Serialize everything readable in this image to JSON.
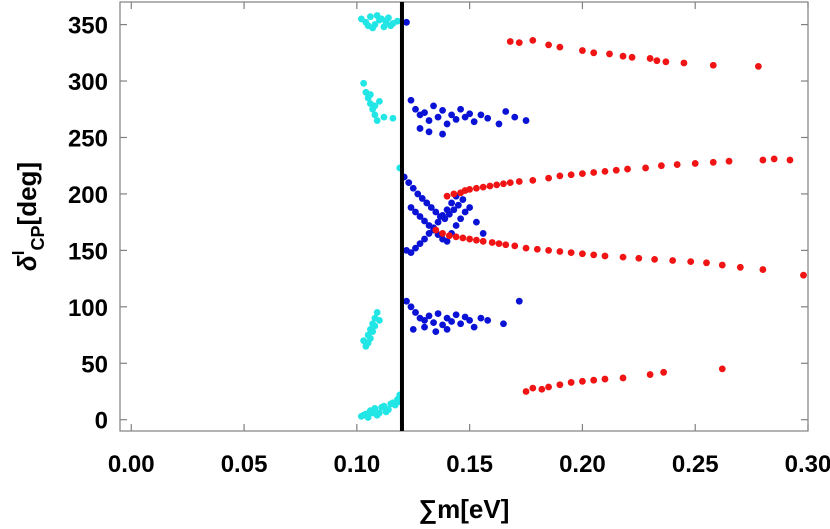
{
  "chart_data": {
    "type": "scatter",
    "title": "",
    "xlabel": "∑m[eV]",
    "ylabel_main": "δ",
    "ylabel_sup": "l",
    "ylabel_sub": "CP",
    "ylabel_unit": "[deg]",
    "xlim": [
      -0.005,
      0.3
    ],
    "ylim": [
      -10,
      370
    ],
    "x_ticks": [
      0.0,
      0.05,
      0.1,
      0.15,
      0.2,
      0.25,
      0.3
    ],
    "x_tick_labels": [
      "0.00",
      "0.05",
      "0.10",
      "0.15",
      "0.20",
      "0.25",
      "0.30"
    ],
    "y_ticks": [
      0,
      50,
      100,
      150,
      200,
      250,
      300,
      350
    ],
    "y_tick_labels": [
      "0",
      "50",
      "100",
      "150",
      "200",
      "250",
      "300",
      "350"
    ],
    "vertical_line": {
      "x": 0.12,
      "color": "#000000"
    },
    "grid": false,
    "series": [
      {
        "color": "#22e6e6",
        "points": [
          [
            0.102,
            355
          ],
          [
            0.104,
            352
          ],
          [
            0.106,
            357
          ],
          [
            0.108,
            350
          ],
          [
            0.11,
            354
          ],
          [
            0.112,
            348
          ],
          [
            0.114,
            356
          ],
          [
            0.116,
            351
          ],
          [
            0.118,
            353
          ],
          [
            0.105,
            349
          ],
          [
            0.109,
            358
          ],
          [
            0.113,
            352
          ],
          [
            0.107,
            347
          ],
          [
            0.111,
            355
          ],
          [
            0.115,
            349
          ],
          [
            0.103,
            298
          ],
          [
            0.104,
            290
          ],
          [
            0.105,
            285
          ],
          [
            0.106,
            280
          ],
          [
            0.107,
            275
          ],
          [
            0.108,
            270
          ],
          [
            0.109,
            265
          ],
          [
            0.11,
            282
          ],
          [
            0.106,
            288
          ],
          [
            0.108,
            278
          ],
          [
            0.112,
            268
          ],
          [
            0.116,
            267
          ],
          [
            0.119,
            223
          ],
          [
            0.103,
            70
          ],
          [
            0.104,
            65
          ],
          [
            0.105,
            75
          ],
          [
            0.106,
            80
          ],
          [
            0.107,
            85
          ],
          [
            0.108,
            90
          ],
          [
            0.109,
            95
          ],
          [
            0.11,
            88
          ],
          [
            0.105,
            68
          ],
          [
            0.107,
            78
          ],
          [
            0.106,
            72
          ],
          [
            0.108,
            83
          ],
          [
            0.102,
            3
          ],
          [
            0.104,
            5
          ],
          [
            0.106,
            8
          ],
          [
            0.108,
            10
          ],
          [
            0.11,
            6
          ],
          [
            0.112,
            12
          ],
          [
            0.114,
            9
          ],
          [
            0.116,
            15
          ],
          [
            0.118,
            18
          ],
          [
            0.119,
            22
          ],
          [
            0.105,
            2
          ],
          [
            0.109,
            4
          ],
          [
            0.113,
            7
          ],
          [
            0.117,
            13
          ],
          [
            0.111,
            11
          ],
          [
            0.115,
            14
          ],
          [
            0.103,
            4
          ],
          [
            0.107,
            6
          ],
          [
            0.119,
            16
          ]
        ]
      },
      {
        "color": "#0a12d6",
        "points": [
          [
            0.122,
            352
          ],
          [
            0.124,
            283
          ],
          [
            0.126,
            275
          ],
          [
            0.128,
            270
          ],
          [
            0.13,
            272
          ],
          [
            0.132,
            265
          ],
          [
            0.134,
            278
          ],
          [
            0.136,
            268
          ],
          [
            0.138,
            274
          ],
          [
            0.14,
            262
          ],
          [
            0.142,
            270
          ],
          [
            0.144,
            266
          ],
          [
            0.146,
            275
          ],
          [
            0.148,
            268
          ],
          [
            0.15,
            271
          ],
          [
            0.152,
            264
          ],
          [
            0.155,
            270
          ],
          [
            0.158,
            267
          ],
          [
            0.163,
            262
          ],
          [
            0.166,
            273
          ],
          [
            0.17,
            268
          ],
          [
            0.175,
            265
          ],
          [
            0.138,
            253
          ],
          [
            0.128,
            258
          ],
          [
            0.132,
            255
          ],
          [
            0.121,
            215
          ],
          [
            0.123,
            210
          ],
          [
            0.125,
            205
          ],
          [
            0.127,
            200
          ],
          [
            0.129,
            196
          ],
          [
            0.131,
            192
          ],
          [
            0.133,
            188
          ],
          [
            0.135,
            184
          ],
          [
            0.137,
            180
          ],
          [
            0.139,
            178
          ],
          [
            0.141,
            182
          ],
          [
            0.143,
            186
          ],
          [
            0.145,
            190
          ],
          [
            0.147,
            195
          ],
          [
            0.15,
            188
          ],
          [
            0.153,
            175
          ],
          [
            0.156,
            165
          ],
          [
            0.124,
            188
          ],
          [
            0.126,
            184
          ],
          [
            0.128,
            180
          ],
          [
            0.13,
            176
          ],
          [
            0.132,
            172
          ],
          [
            0.134,
            168
          ],
          [
            0.136,
            164
          ],
          [
            0.138,
            160
          ],
          [
            0.14,
            158
          ],
          [
            0.142,
            165
          ],
          [
            0.144,
            172
          ],
          [
            0.146,
            178
          ],
          [
            0.148,
            184
          ],
          [
            0.122,
            150
          ],
          [
            0.124,
            148
          ],
          [
            0.126,
            152
          ],
          [
            0.128,
            156
          ],
          [
            0.13,
            160
          ],
          [
            0.132,
            165
          ],
          [
            0.134,
            170
          ],
          [
            0.136,
            175
          ],
          [
            0.138,
            181
          ],
          [
            0.14,
            186
          ],
          [
            0.142,
            192
          ],
          [
            0.144,
            198
          ],
          [
            0.122,
            105
          ],
          [
            0.124,
            100
          ],
          [
            0.126,
            95
          ],
          [
            0.128,
            90
          ],
          [
            0.13,
            88
          ],
          [
            0.132,
            92
          ],
          [
            0.134,
            86
          ],
          [
            0.136,
            94
          ],
          [
            0.138,
            84
          ],
          [
            0.14,
            90
          ],
          [
            0.142,
            87
          ],
          [
            0.144,
            93
          ],
          [
            0.146,
            85
          ],
          [
            0.148,
            91
          ],
          [
            0.15,
            88
          ],
          [
            0.152,
            82
          ],
          [
            0.155,
            90
          ],
          [
            0.158,
            88
          ],
          [
            0.165,
            85
          ],
          [
            0.172,
            105
          ],
          [
            0.125,
            80
          ],
          [
            0.13,
            82
          ],
          [
            0.135,
            78
          ],
          [
            0.14,
            80
          ]
        ]
      },
      {
        "color": "#f01414",
        "points": [
          [
            0.168,
            335
          ],
          [
            0.172,
            334
          ],
          [
            0.178,
            336
          ],
          [
            0.185,
            332
          ],
          [
            0.19,
            330
          ],
          [
            0.2,
            327
          ],
          [
            0.205,
            325
          ],
          [
            0.212,
            324
          ],
          [
            0.218,
            322
          ],
          [
            0.222,
            321
          ],
          [
            0.23,
            320
          ],
          [
            0.233,
            318
          ],
          [
            0.237,
            317
          ],
          [
            0.245,
            316
          ],
          [
            0.258,
            314
          ],
          [
            0.278,
            313
          ],
          [
            0.14,
            198
          ],
          [
            0.143,
            200
          ],
          [
            0.146,
            201
          ],
          [
            0.148,
            203
          ],
          [
            0.15,
            204
          ],
          [
            0.153,
            205
          ],
          [
            0.156,
            206
          ],
          [
            0.159,
            207
          ],
          [
            0.162,
            208
          ],
          [
            0.165,
            209
          ],
          [
            0.168,
            210
          ],
          [
            0.172,
            211
          ],
          [
            0.178,
            212
          ],
          [
            0.185,
            214
          ],
          [
            0.19,
            216
          ],
          [
            0.195,
            217
          ],
          [
            0.2,
            218
          ],
          [
            0.205,
            219
          ],
          [
            0.21,
            220
          ],
          [
            0.215,
            221
          ],
          [
            0.22,
            222
          ],
          [
            0.228,
            223
          ],
          [
            0.235,
            225
          ],
          [
            0.242,
            226
          ],
          [
            0.25,
            227
          ],
          [
            0.258,
            228
          ],
          [
            0.265,
            229
          ],
          [
            0.28,
            230
          ],
          [
            0.285,
            231
          ],
          [
            0.292,
            230
          ],
          [
            0.135,
            168
          ],
          [
            0.138,
            165
          ],
          [
            0.141,
            163
          ],
          [
            0.144,
            162
          ],
          [
            0.147,
            161
          ],
          [
            0.15,
            160
          ],
          [
            0.153,
            159
          ],
          [
            0.156,
            158
          ],
          [
            0.16,
            157
          ],
          [
            0.163,
            156
          ],
          [
            0.166,
            155
          ],
          [
            0.17,
            154
          ],
          [
            0.175,
            152
          ],
          [
            0.18,
            151
          ],
          [
            0.185,
            150
          ],
          [
            0.19,
            149
          ],
          [
            0.195,
            148
          ],
          [
            0.2,
            147
          ],
          [
            0.205,
            146
          ],
          [
            0.21,
            145
          ],
          [
            0.218,
            144
          ],
          [
            0.225,
            143
          ],
          [
            0.232,
            142
          ],
          [
            0.24,
            141
          ],
          [
            0.248,
            140
          ],
          [
            0.255,
            139
          ],
          [
            0.262,
            137
          ],
          [
            0.27,
            135
          ],
          [
            0.28,
            133
          ],
          [
            0.298,
            128
          ],
          [
            0.175,
            25
          ],
          [
            0.178,
            28
          ],
          [
            0.182,
            27
          ],
          [
            0.185,
            29
          ],
          [
            0.19,
            31
          ],
          [
            0.195,
            33
          ],
          [
            0.2,
            34
          ],
          [
            0.205,
            35
          ],
          [
            0.21,
            36
          ],
          [
            0.218,
            37
          ],
          [
            0.23,
            40
          ],
          [
            0.236,
            42
          ],
          [
            0.262,
            45
          ]
        ]
      }
    ]
  }
}
